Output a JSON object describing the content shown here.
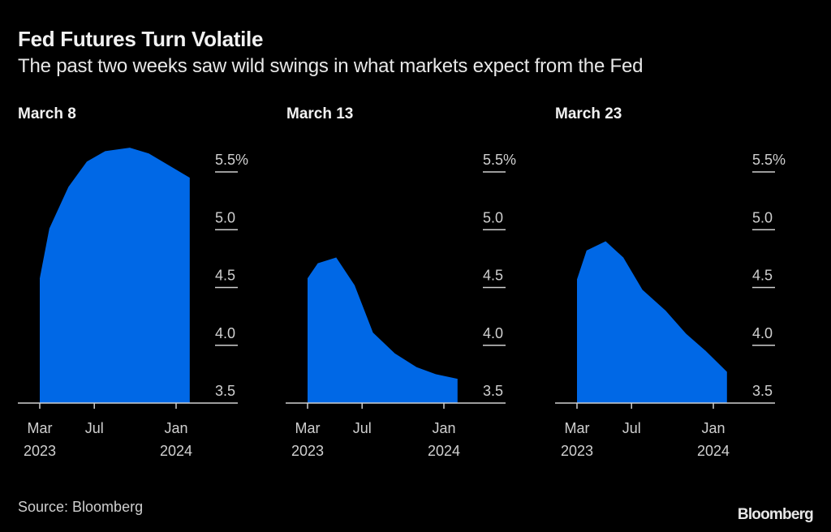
{
  "header": {
    "title": "Fed Futures Turn Volatile",
    "subtitle": "The past two weeks saw wild swings in what markets expect from the Fed"
  },
  "footer": {
    "source": "Source: Bloomberg",
    "logo": "Bloomberg"
  },
  "colors": {
    "fill": "#0068E6",
    "axis": "#cfcfcf",
    "text": "#d0d0d0"
  },
  "chart_data": [
    {
      "type": "area",
      "title": "March 8",
      "x_unit": "months since Mar 2023",
      "x": [
        0,
        0.7,
        2.1,
        3.45,
        4.8,
        6.6,
        8.0,
        11.0
      ],
      "values": [
        4.58,
        5.01,
        5.37,
        5.59,
        5.68,
        5.71,
        5.66,
        5.45
      ],
      "ylim": [
        3.5,
        5.5
      ],
      "yticks": [
        "3.5",
        "4.0",
        "4.5",
        "5.0",
        "5.5%"
      ],
      "ytick_values": [
        3.5,
        4.0,
        4.5,
        5.0,
        5.5
      ],
      "xticks": [
        {
          "month": 0,
          "line1": "Mar",
          "line2": "2023"
        },
        {
          "month": 4,
          "line1": "Jul",
          "line2": ""
        },
        {
          "month": 10,
          "line1": "Jan",
          "line2": "2024"
        }
      ],
      "ylabel": "",
      "xlabel": "",
      "grid": false
    },
    {
      "type": "area",
      "title": "March 13",
      "x_unit": "months since Mar 2023",
      "x": [
        0,
        0.75,
        2.1,
        3.45,
        4.8,
        6.4,
        8.0,
        9.4,
        11.0
      ],
      "values": [
        4.58,
        4.71,
        4.76,
        4.52,
        4.11,
        3.93,
        3.81,
        3.75,
        3.71
      ],
      "ylim": [
        3.5,
        5.5
      ],
      "yticks": [
        "3.5",
        "4.0",
        "4.5",
        "5.0",
        "5.5%"
      ],
      "ytick_values": [
        3.5,
        4.0,
        4.5,
        5.0,
        5.5
      ],
      "xticks": [
        {
          "month": 0,
          "line1": "Mar",
          "line2": "2023"
        },
        {
          "month": 4,
          "line1": "Jul",
          "line2": ""
        },
        {
          "month": 10,
          "line1": "Jan",
          "line2": "2024"
        }
      ],
      "ylabel": "",
      "xlabel": "",
      "grid": false
    },
    {
      "type": "area",
      "title": "March 23",
      "x_unit": "months since Mar 2023",
      "x": [
        0,
        0.7,
        2.1,
        3.4,
        4.8,
        6.5,
        8.0,
        9.45,
        11.0
      ],
      "values": [
        4.57,
        4.82,
        4.9,
        4.76,
        4.48,
        4.3,
        4.1,
        3.95,
        3.77
      ],
      "ylim": [
        3.5,
        5.5
      ],
      "yticks": [
        "3.5",
        "4.0",
        "4.5",
        "5.0",
        "5.5%"
      ],
      "ytick_values": [
        3.5,
        4.0,
        4.5,
        5.0,
        5.5
      ],
      "xticks": [
        {
          "month": 0,
          "line1": "Mar",
          "line2": "2023"
        },
        {
          "month": 4,
          "line1": "Jul",
          "line2": ""
        },
        {
          "month": 10,
          "line1": "Jan",
          "line2": "2024"
        }
      ],
      "ylabel": "",
      "xlabel": "",
      "grid": false
    }
  ]
}
